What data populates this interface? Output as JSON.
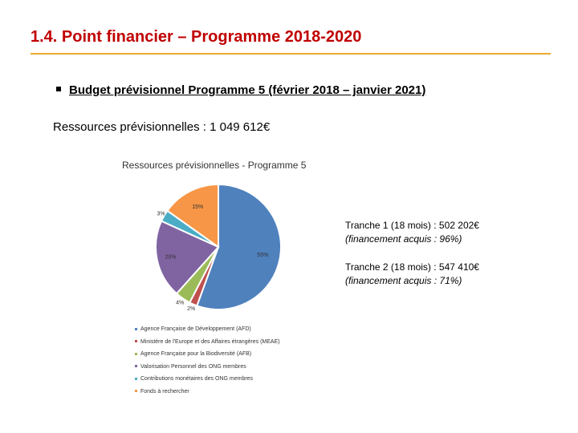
{
  "title": "1.4. Point financier – Programme 2018-2020",
  "bullet": "Budget prévisionnel Programme 5 (février 2018 – janvier 2021)",
  "resources": "Ressources prévisionnelles : 1 049 612€",
  "colors": {
    "title": "#c00000",
    "rule": "#f0a830"
  },
  "chart_data": {
    "type": "pie",
    "title": "Ressources prévisionnelles - Programme 5",
    "categories": [
      "Agence Française de Développement (AFD)",
      "Ministère de l'Europe et des Affaires étrangères (MEAE)",
      "Agence Française pour la Biodiversité (AFB)",
      "Valorisation Personnel des ONG membres",
      "Contributions monétaires des ONG membres",
      "Fonds à rechercher"
    ],
    "values": [
      55,
      2,
      4,
      20,
      3,
      15
    ],
    "labels": [
      "55%",
      "2%",
      "4%",
      "20%",
      "3%",
      "15%"
    ],
    "colors": [
      "#4f81bd",
      "#c0504d",
      "#9bbb59",
      "#8064a2",
      "#4bacc6",
      "#f79646"
    ]
  },
  "tranches": [
    {
      "line": "Tranche 1 (18 mois) : 502 202€",
      "note": "(financement acquis : 96%)"
    },
    {
      "line": "Tranche 2 (18 mois) : 547 410€",
      "note": "(financement acquis : 71%)"
    }
  ]
}
